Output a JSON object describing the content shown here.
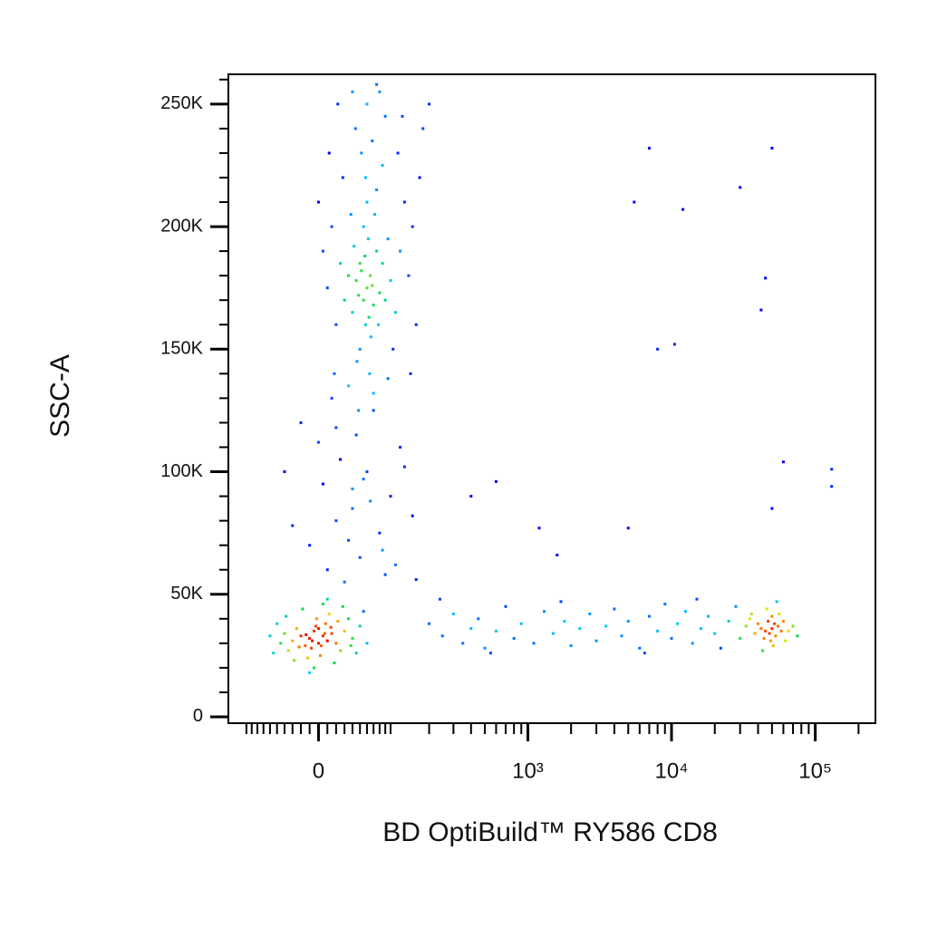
{
  "chart_data": {
    "type": "scatter",
    "x_label": "BD OptiBuild™ RY586 CD8",
    "y_label": "SSC-A",
    "x_scale": "biexponential",
    "density_coloring": true,
    "xlim": [
      -140,
      262144
    ],
    "ylim": [
      -2600,
      262144
    ],
    "xticks": [
      0,
      {
        "value": 1000,
        "label": "10³"
      },
      {
        "value": 10000,
        "label": "10⁴"
      },
      {
        "value": 100000,
        "label": "10⁵"
      }
    ],
    "xminorticks": [
      -100,
      -90,
      -80,
      -70,
      -60,
      -50,
      -40,
      -30,
      -20,
      -10,
      10,
      20,
      30,
      40,
      50,
      60,
      70,
      80,
      90,
      100,
      200,
      300,
      400,
      500,
      600,
      700,
      800,
      900,
      2000,
      3000,
      4000,
      5000,
      6000,
      7000,
      8000,
      9000,
      20000,
      30000,
      40000,
      50000,
      60000,
      70000,
      80000,
      90000,
      200000
    ],
    "yticks": [
      0,
      {
        "value": 50000,
        "label": "50K"
      },
      {
        "value": 100000,
        "label": "100K"
      },
      {
        "value": 150000,
        "label": "150K"
      },
      {
        "value": 200000,
        "label": "200K"
      },
      {
        "value": 250000,
        "label": "250K"
      }
    ],
    "yminorticks": [
      10000,
      20000,
      30000,
      40000,
      60000,
      70000,
      80000,
      90000,
      110000,
      120000,
      130000,
      140000,
      160000,
      170000,
      180000,
      190000,
      210000,
      220000,
      230000,
      240000,
      260000
    ],
    "series": [
      {
        "x": [
          -10,
          0,
          5,
          -5,
          10,
          -15,
          15,
          0,
          -20,
          20,
          -8,
          8,
          -25,
          25,
          -30,
          30,
          2,
          -2,
          12,
          -12,
          -40,
          40,
          -35,
          35,
          -45,
          45,
          -18,
          18,
          -50,
          50,
          5,
          -5,
          28,
          -28,
          60,
          -60,
          3,
          -3,
          7,
          -7,
          14,
          -14,
          22,
          -22,
          38,
          -38,
          55,
          -55,
          10,
          -10,
          30,
          10,
          50,
          -10,
          80,
          20,
          40,
          100,
          5,
          60,
          25,
          120,
          45,
          -20,
          70,
          15,
          90,
          35,
          150,
          55,
          0,
          110,
          65,
          -30,
          130,
          20,
          85,
          40,
          160,
          -40,
          60,
          55,
          65,
          50,
          70,
          45,
          75,
          58,
          62,
          48,
          68,
          52,
          40,
          80,
          57,
          63,
          35,
          85,
          55,
          66,
          42,
          78,
          60,
          50,
          90,
          30,
          72,
          46,
          95,
          25,
          58,
          64,
          100,
          20,
          75,
          38,
          110,
          15,
          85,
          52,
          120,
          10,
          68,
          44,
          130,
          28,
          90,
          60,
          140,
          35,
          105,
          18,
          80,
          48,
          150,
          12,
          115,
          70,
          160,
          5,
          125,
          40,
          170,
          95,
          0,
          180,
          145,
          22,
          200,
          75,
          200,
          250,
          300,
          350,
          400,
          450,
          500,
          600,
          700,
          800,
          900,
          1100,
          1300,
          1500,
          1800,
          2000,
          2300,
          2700,
          3000,
          3500,
          4000,
          4500,
          5000,
          6000,
          7000,
          8000,
          9000,
          10000,
          11000,
          12500,
          14000,
          16000,
          18000,
          20000,
          22000,
          25000,
          28000,
          30000,
          33000,
          36000,
          240,
          550,
          1700,
          6500,
          15000,
          50000,
          48000,
          52000,
          45000,
          55000,
          47000,
          53000,
          42000,
          58000,
          50000,
          49000,
          40000,
          60000,
          44000,
          56000,
          38000,
          65000,
          51000,
          46000,
          62000,
          35000,
          70000,
          54000,
          43000,
          75000,
          7000,
          5500,
          12000,
          30000,
          50000,
          45000,
          42000,
          8000,
          10500,
          60000,
          130000,
          130000,
          600,
          400,
          5000,
          50000,
          1200,
          1600
        ],
        "y": [
          32000,
          30000,
          33000,
          35000,
          31000,
          29000,
          34000,
          36000,
          33000,
          30000,
          28000,
          38000,
          36000,
          27000,
          31000,
          35000,
          25000,
          40000,
          42000,
          24000,
          34000,
          32000,
          27000,
          40000,
          30000,
          26000,
          44000,
          22000,
          38000,
          37000,
          46000,
          20000,
          45000,
          23000,
          30000,
          33000,
          29000,
          37000,
          34000,
          31000,
          36500,
          33500,
          39000,
          28500,
          29000,
          41000,
          43000,
          26000,
          48000,
          18000,
          55000,
          60000,
          65000,
          70000,
          75000,
          80000,
          85000,
          90000,
          95000,
          100000,
          105000,
          110000,
          115000,
          120000,
          125000,
          130000,
          58000,
          72000,
          82000,
          97000,
          112000,
          62000,
          88000,
          78000,
          102000,
          118000,
          68000,
          93000,
          56000,
          100000,
          175000,
          170000,
          180000,
          185000,
          168000,
          178000,
          190000,
          160000,
          195000,
          172000,
          176000,
          182000,
          165000,
          173000,
          188000,
          163000,
          180000,
          185000,
          200000,
          155000,
          192000,
          160000,
          210000,
          150000,
          170000,
          170000,
          205000,
          145000,
          195000,
          185000,
          220000,
          140000,
          178000,
          160000,
          215000,
          205000,
          165000,
          200000,
          225000,
          230000,
          190000,
          175000,
          235000,
          240000,
          210000,
          220000,
          245000,
          250000,
          180000,
          135000,
          150000,
          140000,
          255000,
          125000,
          200000,
          230000,
          230000,
          132000,
          160000,
          190000,
          245000,
          255000,
          220000,
          138000,
          210000,
          240000,
          140000,
          250000,
          250000,
          258000,
          38000,
          33000,
          42000,
          30000,
          36000,
          40000,
          28000,
          35000,
          45000,
          32000,
          38000,
          30000,
          43000,
          34000,
          39000,
          29000,
          36000,
          42000,
          31000,
          37000,
          44000,
          33000,
          39000,
          28000,
          41000,
          35000,
          46000,
          32000,
          38000,
          43000,
          30000,
          36000,
          41000,
          34000,
          28000,
          39000,
          45000,
          32000,
          37000,
          42000,
          48000,
          26000,
          47000,
          26000,
          48000,
          36000,
          34000,
          38000,
          35000,
          37000,
          39000,
          33000,
          36000,
          35000,
          41000,
          31000,
          38000,
          39000,
          32000,
          42000,
          34000,
          35000,
          29000,
          44000,
          31000,
          40000,
          37000,
          47000,
          27000,
          33000,
          232000,
          210000,
          207000,
          216000,
          232000,
          179000,
          166000,
          150000,
          152000,
          104000,
          101000,
          94000,
          96000,
          90000,
          77000,
          85000,
          77000,
          66000
        ]
      }
    ]
  }
}
